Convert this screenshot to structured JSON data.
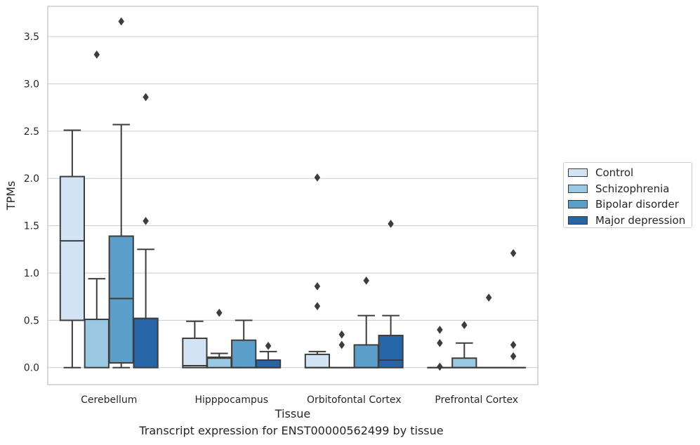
{
  "chart_data": {
    "type": "box",
    "xlabel": "Tissue",
    "ylabel": "TPMs",
    "ylim": [
      -0.18,
      3.82
    ],
    "yticks": [
      "0.0",
      "0.5",
      "1.0",
      "1.5",
      "2.0",
      "2.5",
      "3.0",
      "3.5"
    ],
    "grid": "horizontal",
    "legend_placement": "outside-right",
    "categories": [
      "Cerebellum",
      "Hipppocampus",
      "Orbitofontal Cortex",
      "Prefrontal Cortex"
    ],
    "series": [
      {
        "name": "Control",
        "color": "#d2e3f3",
        "boxes": [
          {
            "q1": 0.5,
            "median": 1.34,
            "q3": 2.02,
            "whisker_low": 0.0,
            "whisker_high": 2.51,
            "outliers": []
          },
          {
            "q1": 0.0,
            "median": 0.02,
            "q3": 0.31,
            "whisker_low": 0.0,
            "whisker_high": 0.49,
            "outliers": []
          },
          {
            "q1": 0.0,
            "median": 0.0,
            "q3": 0.14,
            "whisker_low": 0.0,
            "whisker_high": 0.17,
            "outliers": [
              0.65,
              0.86,
              2.01
            ]
          },
          {
            "q1": 0.0,
            "median": 0.0,
            "q3": 0.0,
            "whisker_low": 0.0,
            "whisker_high": 0.0,
            "outliers": [
              0.01,
              0.26,
              0.4
            ]
          }
        ]
      },
      {
        "name": "Schizophrenia",
        "color": "#9ac8e0",
        "boxes": [
          {
            "q1": 0.0,
            "median": 0.51,
            "q3": 0.51,
            "whisker_low": 0.0,
            "whisker_high": 0.94,
            "outliers": [
              3.31
            ]
          },
          {
            "q1": 0.0,
            "median": 0.1,
            "q3": 0.11,
            "whisker_low": 0.0,
            "whisker_high": 0.15,
            "outliers": [
              0.58
            ]
          },
          {
            "q1": 0.0,
            "median": 0.0,
            "q3": 0.0,
            "whisker_low": 0.0,
            "whisker_high": 0.0,
            "outliers": [
              0.24,
              0.35
            ]
          },
          {
            "q1": 0.0,
            "median": 0.0,
            "q3": 0.1,
            "whisker_low": 0.0,
            "whisker_high": 0.26,
            "outliers": [
              0.45
            ]
          }
        ]
      },
      {
        "name": "Bipolar disorder",
        "color": "#5a9ec9",
        "boxes": [
          {
            "q1": 0.05,
            "median": 0.73,
            "q3": 1.39,
            "whisker_low": 0.0,
            "whisker_high": 2.57,
            "outliers": [
              3.66
            ]
          },
          {
            "q1": 0.0,
            "median": 0.0,
            "q3": 0.29,
            "whisker_low": 0.0,
            "whisker_high": 0.5,
            "outliers": []
          },
          {
            "q1": 0.0,
            "median": 0.0,
            "q3": 0.24,
            "whisker_low": 0.0,
            "whisker_high": 0.55,
            "outliers": [
              0.92
            ]
          },
          {
            "q1": 0.0,
            "median": 0.0,
            "q3": 0.0,
            "whisker_low": 0.0,
            "whisker_high": 0.0,
            "outliers": [
              0.74
            ]
          }
        ]
      },
      {
        "name": "Major depression",
        "color": "#2666a8",
        "boxes": [
          {
            "q1": 0.0,
            "median": 0.52,
            "q3": 0.52,
            "whisker_low": 0.0,
            "whisker_high": 1.25,
            "outliers": [
              1.55,
              2.86
            ]
          },
          {
            "q1": 0.0,
            "median": 0.0,
            "q3": 0.08,
            "whisker_low": 0.0,
            "whisker_high": 0.17,
            "outliers": [
              0.23
            ]
          },
          {
            "q1": 0.0,
            "median": 0.08,
            "q3": 0.34,
            "whisker_low": 0.0,
            "whisker_high": 0.55,
            "outliers": [
              1.52
            ]
          },
          {
            "q1": 0.0,
            "median": 0.0,
            "q3": 0.0,
            "whisker_low": 0.0,
            "whisker_high": 0.0,
            "outliers": [
              0.12,
              0.24,
              1.21
            ]
          }
        ]
      }
    ]
  },
  "caption": "Transcript expression for ENST00000562499 by tissue"
}
